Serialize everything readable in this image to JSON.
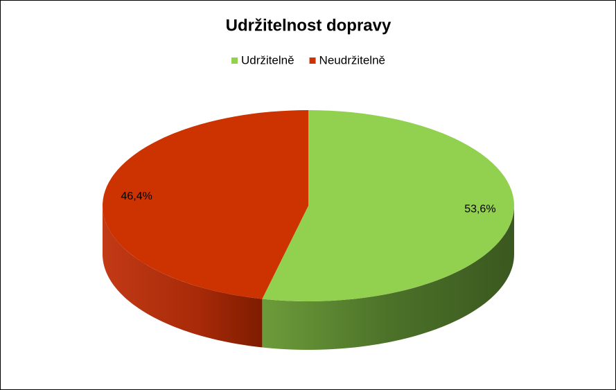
{
  "chart_data": {
    "type": "pie",
    "title": "Udržitelnost dopravy",
    "categories": [
      "Udržitelně",
      "Neudržitelně"
    ],
    "values": [
      53.6,
      46.4
    ],
    "value_labels": [
      "53,6%",
      "46,4%"
    ],
    "colors": [
      "#92d050",
      "#cc3300"
    ],
    "legend": "top"
  }
}
